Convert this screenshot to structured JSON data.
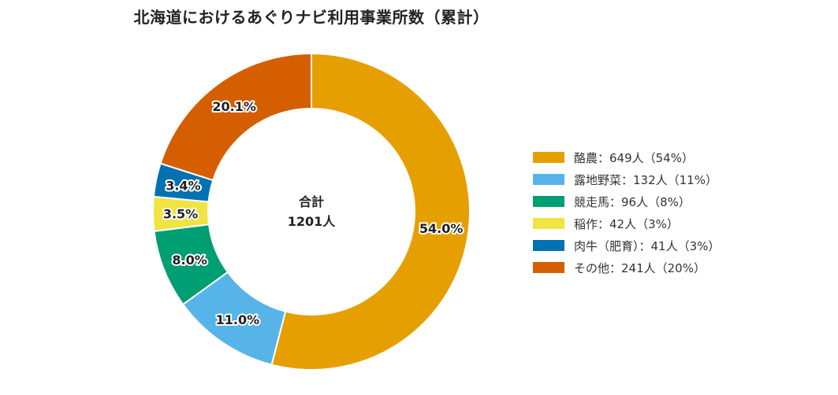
{
  "chart_data": {
    "type": "pie",
    "title": "北海道におけるあぐりナビ利用事業所数（累計）",
    "center_label": {
      "line1": "合計",
      "line2": "1201人"
    },
    "slices": [
      {
        "name": "酪農",
        "value": 649,
        "percent_label": "54.0%",
        "legend": "酪農：649人（54%）",
        "color": "#E69F00"
      },
      {
        "name": "露地野菜",
        "value": 132,
        "percent_label": "11.0%",
        "legend": "露地野菜：132人（11%）",
        "color": "#56B4E9"
      },
      {
        "name": "競走馬",
        "value": 96,
        "percent_label": "8.0%",
        "legend": "競走馬：96人（8%）",
        "color": "#009E73"
      },
      {
        "name": "稲作",
        "value": 42,
        "percent_label": "3.5%",
        "legend": "稲作：42人（3%）",
        "color": "#F0E442"
      },
      {
        "name": "肉牛（肥育）",
        "value": 41,
        "percent_label": "3.4%",
        "legend": "肉牛（肥育）：41人（3%）",
        "color": "#0072B2"
      },
      {
        "name": "その他",
        "value": 241,
        "percent_label": "20.1%",
        "legend": "その他：241人（20%）",
        "color": "#D55E00"
      }
    ],
    "start": "top",
    "direction": "clockwise",
    "legend_position": "right"
  }
}
